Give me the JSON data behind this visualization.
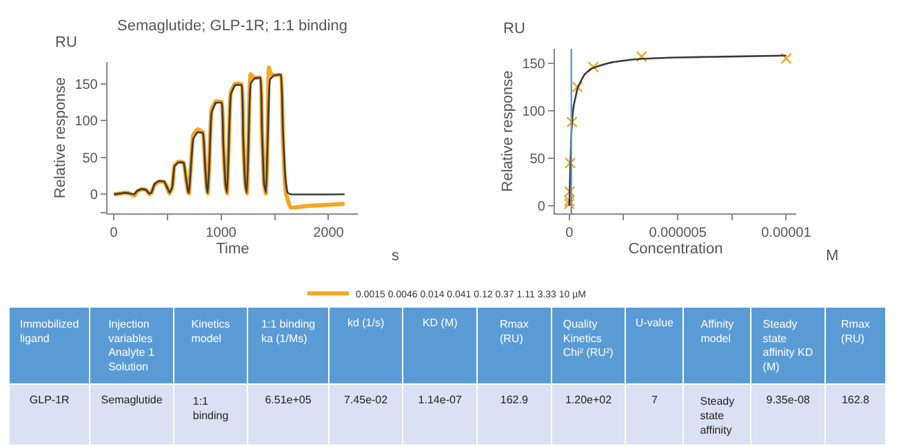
{
  "chart_data": [
    {
      "type": "line",
      "title": "Semaglutide; GLP-1R; 1:1 binding",
      "xlabel": "Time",
      "ylabel": "Relative response",
      "annotations": [
        "RU",
        "s"
      ],
      "xlim": [
        -60,
        2275
      ],
      "ylim": [
        -26,
        179
      ],
      "xticks": [
        0,
        {
          "value": 500,
          "label": null
        },
        1000,
        {
          "value": 1500,
          "label": null
        },
        2000
      ],
      "yticks": [
        {
          "value": -25,
          "label": null
        },
        0,
        50,
        100,
        150
      ],
      "legend": "bottom",
      "marker": "none",
      "series": [
        {
          "color": "#f5a623",
          "name": "0.0015 0.0046 0.014 0.041 0.12 0.37 1.11 3.33 10 µM",
          "x": [
            0,
            60,
            100,
            150,
            190,
            220,
            260,
            300,
            330,
            350,
            380,
            420,
            470,
            500,
            520,
            545,
            565,
            600,
            650,
            670,
            690,
            700,
            715,
            740,
            780,
            830,
            850,
            865,
            875,
            890,
            910,
            950,
            1005,
            1020,
            1040,
            1055,
            1070,
            1090,
            1130,
            1190,
            1205,
            1225,
            1240,
            1255,
            1275,
            1310,
            1365,
            1380,
            1400,
            1418,
            1435,
            1445,
            1460,
            1490,
            1555,
            1575,
            1600,
            1625,
            1650,
            1800,
            2150
          ],
          "values": [
            0,
            1,
            2,
            1,
            -2,
            4,
            7,
            6,
            0,
            2,
            13,
            17,
            17,
            8,
            1,
            10,
            39,
            44,
            43,
            25,
            4,
            1,
            32,
            80,
            88,
            84,
            40,
            9,
            1,
            42,
            114,
            126,
            125,
            70,
            14,
            1,
            62,
            138,
            150,
            149,
            80,
            14,
            1,
            72,
            163,
            158,
            158,
            90,
            14,
            1,
            90,
            172,
            164,
            161,
            162,
            80,
            5,
            -10,
            -18,
            -16,
            -13
          ]
        },
        {
          "color": "#3a3a3a",
          "x": [
            0,
            60,
            100,
            150,
            190,
            220,
            260,
            300,
            330,
            350,
            380,
            420,
            470,
            500,
            520,
            545,
            565,
            600,
            650,
            670,
            690,
            700,
            715,
            740,
            780,
            830,
            850,
            865,
            875,
            890,
            910,
            950,
            1005,
            1020,
            1040,
            1055,
            1070,
            1090,
            1130,
            1190,
            1205,
            1225,
            1240,
            1255,
            1275,
            1310,
            1365,
            1380,
            1400,
            1418,
            1435,
            1455,
            1490,
            1555,
            1575,
            1600,
            1620,
            1650,
            2150
          ],
          "values": [
            0,
            1,
            2,
            1,
            0,
            5,
            7,
            6,
            1,
            2,
            14,
            18,
            17,
            8,
            2,
            10,
            38,
            43,
            43,
            25,
            5,
            2,
            30,
            75,
            84,
            83,
            40,
            10,
            2,
            40,
            110,
            124,
            124,
            70,
            15,
            2,
            60,
            135,
            148,
            148,
            80,
            15,
            2,
            70,
            150,
            157,
            158,
            90,
            15,
            2,
            80,
            155,
            161,
            162,
            90,
            20,
            2,
            0,
            0
          ]
        }
      ]
    },
    {
      "type": "line",
      "xlabel": "Concentration",
      "ylabel": "Relative response",
      "annotations": [
        "RU",
        "M"
      ],
      "xlim": [
        -6.7e-07,
        1.047e-05
      ],
      "ylim": [
        -8,
        165
      ],
      "xticks": [
        0,
        {
          "value": 2.5e-06,
          "label": null
        },
        {
          "value": 5e-06,
          "label": "0.000005"
        },
        {
          "value": 7.5e-06,
          "label": null
        },
        {
          "value": 1e-05,
          "label": "0.00001"
        }
      ],
      "yticks": [
        0,
        50,
        100,
        150
      ],
      "ref_lines": [
        {
          "axis": "x",
          "value": 9.35e-08,
          "color": "#5b9bd5"
        }
      ],
      "series": [
        {
          "type": "scatter",
          "marker": "cross",
          "color": "#f5a623",
          "x": [
            1.5e-09,
            4.6e-09,
            1.4e-08,
            4.1e-08,
            1.2e-07,
            3.7e-07,
            1.11e-06,
            3.33e-06,
            1e-05
          ],
          "values": [
            2,
            5,
            15,
            45,
            88,
            125,
            146,
            157,
            155
          ]
        },
        {
          "type": "line",
          "marker": "none",
          "color": "#3a3a3a",
          "x": [
            0,
            5e-08,
            1e-07,
            2e-07,
            4e-07,
            7e-07,
            1e-06,
            1.5e-06,
            2e-06,
            3e-06,
            5e-06,
            7.5e-06,
            1e-05
          ],
          "values": [
            0,
            45,
            78,
            105,
            125,
            138,
            144,
            148,
            151,
            154,
            156,
            157,
            158
          ]
        }
      ]
    },
    {
      "type": "other",
      "categories": [
        "Immobilized ligand",
        "Injection variables Analyte 1 Solution",
        "Kinetics model",
        "1:1 binding ka (1/Ms)",
        "kd (1/s)",
        "KD (M)",
        "Rmax (RU)",
        "Quality Kinetics Chi² (RU²)",
        "U-value",
        "Affinity model",
        "Steady state affinity KD (M)",
        "Rmax (RU)"
      ],
      "annotations": [
        "GLP-1R",
        "Semaglutide",
        "1:1 binding",
        "6.51e+05",
        "7.45e-02",
        "1.14e-07",
        "162.9",
        "1.20e+02",
        "7",
        "Steady state affinity",
        "9.35e-08",
        "162.8"
      ]
    }
  ]
}
